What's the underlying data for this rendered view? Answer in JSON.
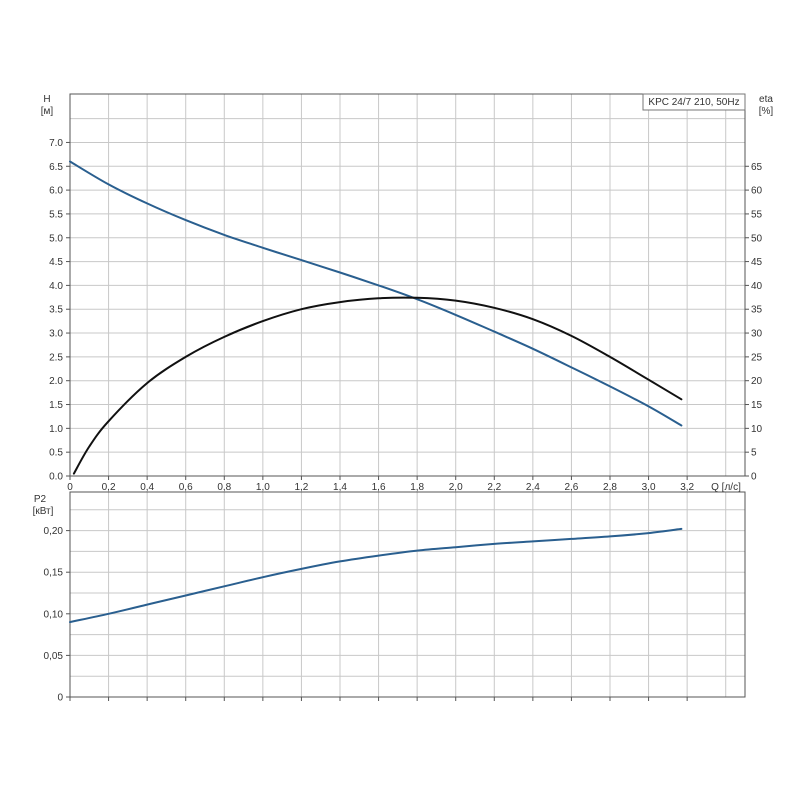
{
  "chart_data": [
    {
      "type": "line",
      "title": "KPC 24/7 210, 50Hz",
      "xlabel": "Q [л/с]",
      "x_unit_label": "Q [л/с]",
      "xlim": [
        0,
        3.5
      ],
      "x_ticks": [
        "0",
        "0,2",
        "0,4",
        "0,6",
        "0,8",
        "1,0",
        "1,2",
        "1,4",
        "1,6",
        "1,8",
        "2,0",
        "2,2",
        "2,4",
        "2,6",
        "2,8",
        "3,0",
        "3,2"
      ],
      "x_tick_values": [
        0,
        0.2,
        0.4,
        0.6,
        0.8,
        1.0,
        1.2,
        1.4,
        1.6,
        1.8,
        2.0,
        2.2,
        2.4,
        2.6,
        2.8,
        3.0,
        3.2
      ],
      "y_left": {
        "label": "H",
        "unit": "[м]",
        "ylim": [
          0,
          7.7
        ],
        "ticks": [
          "0.0",
          "0.5",
          "1.0",
          "1.5",
          "2.0",
          "2.5",
          "3.0",
          "3.5",
          "4.0",
          "4.5",
          "5.0",
          "5.5",
          "6.0",
          "6.5",
          "7.0"
        ],
        "tick_values": [
          0,
          0.5,
          1.0,
          1.5,
          2.0,
          2.5,
          3.0,
          3.5,
          4.0,
          4.5,
          5.0,
          5.5,
          6.0,
          6.5,
          7.0
        ]
      },
      "y_right": {
        "label": "eta",
        "unit": "[%]",
        "ylim": [
          0,
          77
        ],
        "ticks": [
          "0",
          "5",
          "10",
          "15",
          "20",
          "25",
          "30",
          "35",
          "40",
          "45",
          "50",
          "55",
          "60",
          "65"
        ],
        "tick_values": [
          0,
          5,
          10,
          15,
          20,
          25,
          30,
          35,
          40,
          45,
          50,
          55,
          60,
          65
        ]
      },
      "grid": true,
      "series": [
        {
          "axis": "left",
          "color": "#2a5f8f",
          "x": [
            0,
            0.2,
            0.4,
            0.6,
            0.8,
            1.0,
            1.2,
            1.4,
            1.6,
            1.8,
            2.0,
            2.2,
            2.4,
            2.6,
            2.8,
            3.0,
            3.17
          ],
          "y": [
            6.6,
            6.12,
            5.72,
            5.37,
            5.06,
            4.79,
            4.53,
            4.27,
            4.0,
            3.71,
            3.38,
            3.03,
            2.67,
            2.28,
            1.88,
            1.46,
            1.06
          ]
        },
        {
          "axis": "right",
          "color": "#111111",
          "x": [
            0.02,
            0.1,
            0.2,
            0.4,
            0.6,
            0.8,
            1.0,
            1.2,
            1.4,
            1.6,
            1.8,
            2.0,
            2.2,
            2.4,
            2.6,
            2.8,
            3.0,
            3.17
          ],
          "y": [
            0.5,
            6.2,
            11.5,
            19.5,
            25.0,
            29.2,
            32.5,
            35.0,
            36.5,
            37.3,
            37.4,
            36.8,
            35.3,
            32.9,
            29.4,
            25.0,
            20.2,
            16.1
          ]
        }
      ]
    },
    {
      "type": "line",
      "ylabel": "P2",
      "y_unit": "[кВт]",
      "xlim": [
        0,
        3.5
      ],
      "x_tick_values": [
        0,
        0.2,
        0.4,
        0.6,
        0.8,
        1.0,
        1.2,
        1.4,
        1.6,
        1.8,
        2.0,
        2.2,
        2.4,
        2.6,
        2.8,
        3.0,
        3.2
      ],
      "ylim": [
        0,
        0.24
      ],
      "ticks": [
        "0",
        "0,05",
        "0,10",
        "0,15",
        "0,20"
      ],
      "tick_values": [
        0,
        0.05,
        0.1,
        0.15,
        0.2
      ],
      "grid": true,
      "series": [
        {
          "color": "#2a5f8f",
          "x": [
            0,
            0.2,
            0.4,
            0.6,
            0.8,
            1.0,
            1.2,
            1.4,
            1.6,
            1.8,
            2.0,
            2.2,
            2.4,
            2.6,
            2.8,
            3.0,
            3.17
          ],
          "y": [
            0.09,
            0.1,
            0.111,
            0.122,
            0.133,
            0.144,
            0.154,
            0.163,
            0.17,
            0.176,
            0.18,
            0.184,
            0.187,
            0.19,
            0.193,
            0.197,
            0.202
          ]
        }
      ]
    }
  ]
}
